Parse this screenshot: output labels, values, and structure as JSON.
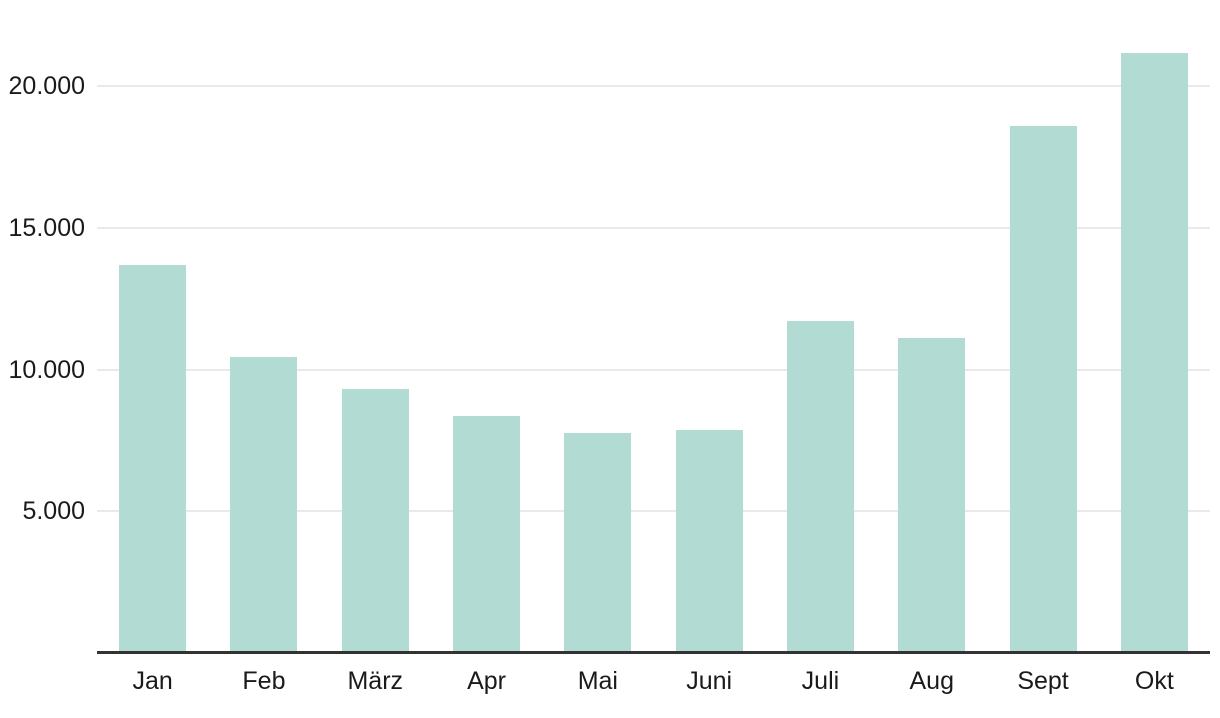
{
  "chart_data": {
    "type": "bar",
    "title": "",
    "xlabel": "",
    "ylabel": "",
    "categories": [
      "Jan",
      "Feb",
      "März",
      "Apr",
      "Mai",
      "Juni",
      "Juli",
      "Aug",
      "Sept",
      "Okt"
    ],
    "values": [
      13700,
      10450,
      9300,
      8350,
      7750,
      7850,
      11700,
      11100,
      18600,
      21150
    ],
    "ylim": [
      0,
      23000
    ],
    "yticks": [
      5000,
      10000,
      15000,
      20000
    ],
    "ytick_labels": [
      "5.000",
      "10.000",
      "15.000",
      "20.000"
    ],
    "grid": true,
    "legend_position": "none",
    "colors": {
      "bar": "#b2dbd4",
      "gridline": "#e9e9e9",
      "axis_line": "#333333",
      "label_text": "#1a1a1a",
      "background": "#ffffff"
    }
  }
}
